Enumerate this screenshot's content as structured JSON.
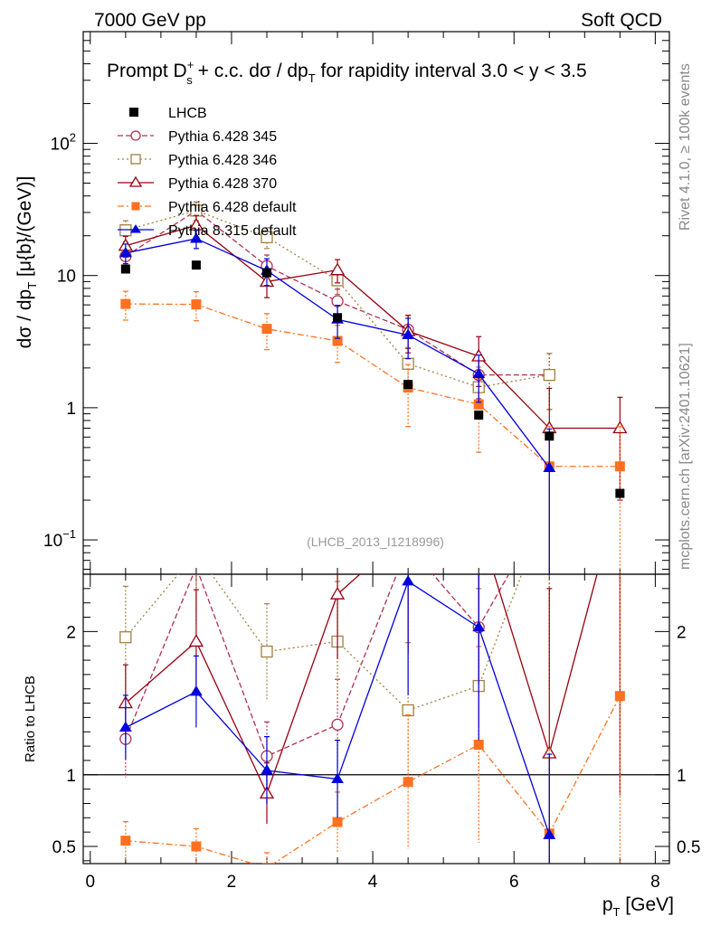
{
  "header": {
    "left": "7000 GeV pp",
    "right": "Soft QCD"
  },
  "side_labels": {
    "rivet": "Rivet 4.1.0, ≥ 100k events",
    "mcplots": "mcplots.cern.ch [arXiv:2401.10621]"
  },
  "chart_data": {
    "type": "line",
    "title": {
      "prefix": "Prompt D",
      "sup": "+",
      "sub": "s",
      "middle": " + c.c.  dσ / dp",
      "sub2": "T",
      "suffix": " for rapidity interval 3.0 < y < 3.5"
    },
    "watermark": "(LHCB_2013_I1218996)",
    "xlabel": {
      "main": "p",
      "sub": "T",
      "unit": " [GeV]"
    },
    "ylabel": {
      "d": "dσ / dp",
      "sub": "T",
      "unit": " [μ{b}/(GeV)]"
    },
    "ratio_ylabel": "Ratio to LHCB",
    "xlim": [
      -0.1,
      8.2
    ],
    "ylim": [
      0.055,
      700
    ],
    "yscale": "log",
    "ratio_ylim": [
      0.38,
      2.4
    ],
    "x_ticks": [
      0,
      2,
      4,
      6,
      8
    ],
    "x_tick_labels": [
      "0",
      "2",
      "4",
      "6",
      "8"
    ],
    "y_ticks": [
      0.1,
      1,
      10,
      100
    ],
    "y_tick_labels": [
      {
        "base": "10",
        "exp": "−1"
      },
      {
        "base": "1",
        "exp": ""
      },
      {
        "base": "10",
        "exp": ""
      },
      {
        "base": "10",
        "exp": "2"
      }
    ],
    "ratio_ticks": [
      0.5,
      1,
      2
    ],
    "ratio_tick_labels": [
      "0.5",
      "1",
      "2"
    ],
    "x": [
      0.5,
      1.5,
      2.5,
      3.5,
      4.5,
      5.5,
      6.5,
      7.5
    ],
    "data": {
      "name": "LHCB",
      "values": [
        11.2,
        12.0,
        10.5,
        4.8,
        1.5,
        0.88,
        0.61,
        0.225
      ]
    },
    "series": [
      {
        "name": "Pythia 6.428 345",
        "color": "#b03050",
        "dash": "6,3",
        "marker": "circle-open",
        "values": [
          14.0,
          31.0,
          11.8,
          6.4,
          3.9,
          1.77,
          1.77,
          null
        ],
        "errors": [
          3.0,
          5.0,
          2.5,
          1.5,
          1.1,
          0.6,
          0.8,
          null
        ],
        "ratio": [
          1.25,
          2.45,
          1.13,
          1.35,
          2.6,
          2.03,
          2.9,
          null
        ]
      },
      {
        "name": "Pythia 6.428 346",
        "color": "#a08040",
        "dash": "2,3",
        "marker": "square-open",
        "values": [
          22.0,
          31.0,
          19.5,
          9.2,
          2.15,
          1.43,
          1.77,
          null
        ],
        "errors": [
          4.0,
          5.0,
          3.5,
          2.0,
          0.7,
          0.6,
          0.8,
          null
        ],
        "ratio": [
          1.96,
          2.55,
          1.86,
          1.93,
          1.45,
          1.62,
          2.9,
          null
        ]
      },
      {
        "name": "Pythia 6.428 370",
        "color": "#990011",
        "dash": "",
        "marker": "triangle-open",
        "values": [
          16.8,
          24.0,
          9.0,
          11.0,
          3.8,
          2.45,
          0.7,
          0.7
        ],
        "errors": [
          3.0,
          4.5,
          2.2,
          2.2,
          1.2,
          1.0,
          0.7,
          0.5
        ],
        "ratio": [
          1.5,
          1.93,
          0.87,
          2.26,
          2.7,
          2.75,
          1.15,
          3.0
        ]
      },
      {
        "name": "Pythia 6.428 default",
        "color": "#ff7020",
        "dash": "7,3,2,3",
        "marker": "square-filled",
        "values": [
          6.1,
          6.05,
          3.95,
          3.2,
          1.42,
          1.06,
          0.36,
          0.36
        ],
        "errors": [
          1.5,
          1.5,
          1.2,
          1.0,
          0.7,
          0.6,
          0.36,
          0.36
        ],
        "ratio": [
          0.54,
          0.5,
          0.35,
          0.67,
          0.95,
          1.21,
          0.59,
          1.55
        ]
      },
      {
        "name": "Pythia 8.315 default",
        "color": "#0000dd",
        "dash": "",
        "marker": "triangle-filled",
        "values": [
          14.8,
          19.0,
          10.9,
          4.65,
          3.55,
          1.8,
          0.35,
          null
        ],
        "errors": [
          2.5,
          3.0,
          2.5,
          1.3,
          1.2,
          0.7,
          0.34,
          null
        ],
        "ratio": [
          1.33,
          1.58,
          1.03,
          0.97,
          2.35,
          2.03,
          0.58,
          null
        ]
      }
    ]
  }
}
